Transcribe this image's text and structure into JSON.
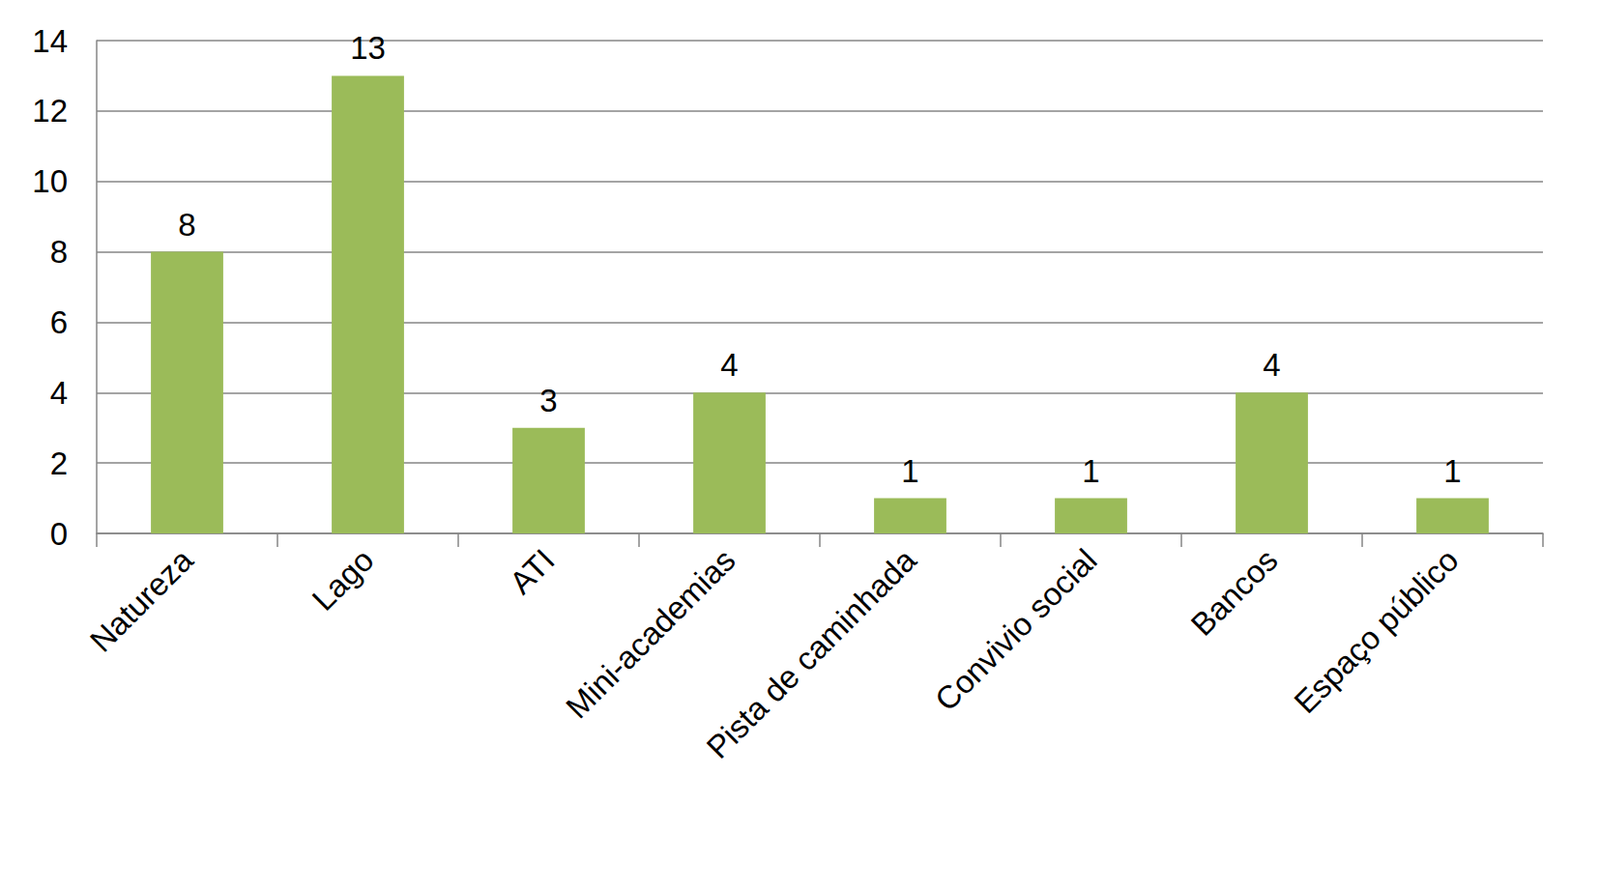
{
  "chart_data": {
    "type": "bar",
    "categories": [
      "Natureza",
      "Lago",
      "ATI",
      "Mini-academias",
      "Pista de caminhada",
      "Convivio social",
      "Bancos",
      "Espaço público"
    ],
    "values": [
      8,
      13,
      3,
      4,
      1,
      1,
      4,
      1
    ],
    "color": "#9bbb59",
    "ylim": [
      0,
      14
    ],
    "yticks": [
      0,
      2,
      4,
      6,
      8,
      10,
      12,
      14
    ],
    "grid": true,
    "data_labels": true
  }
}
